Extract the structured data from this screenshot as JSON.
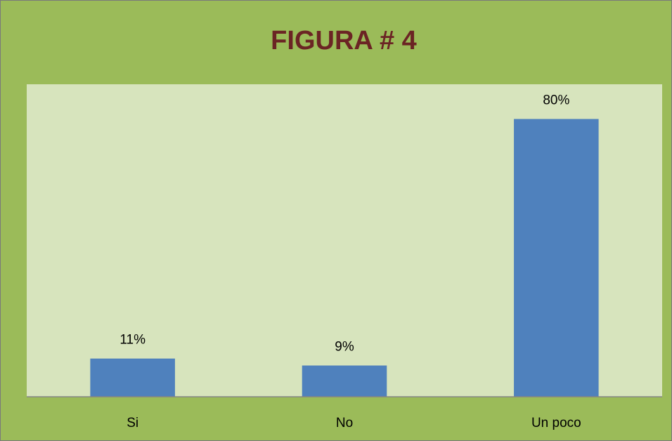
{
  "chart_data": {
    "type": "bar",
    "title": "FIGURA # 4",
    "categories": [
      "Si",
      "No",
      "Un poco"
    ],
    "values": [
      11,
      9,
      80
    ],
    "value_labels": [
      "11%",
      "9%",
      "80%"
    ],
    "color": "#4f81bd",
    "ylim": [
      0,
      90
    ]
  }
}
